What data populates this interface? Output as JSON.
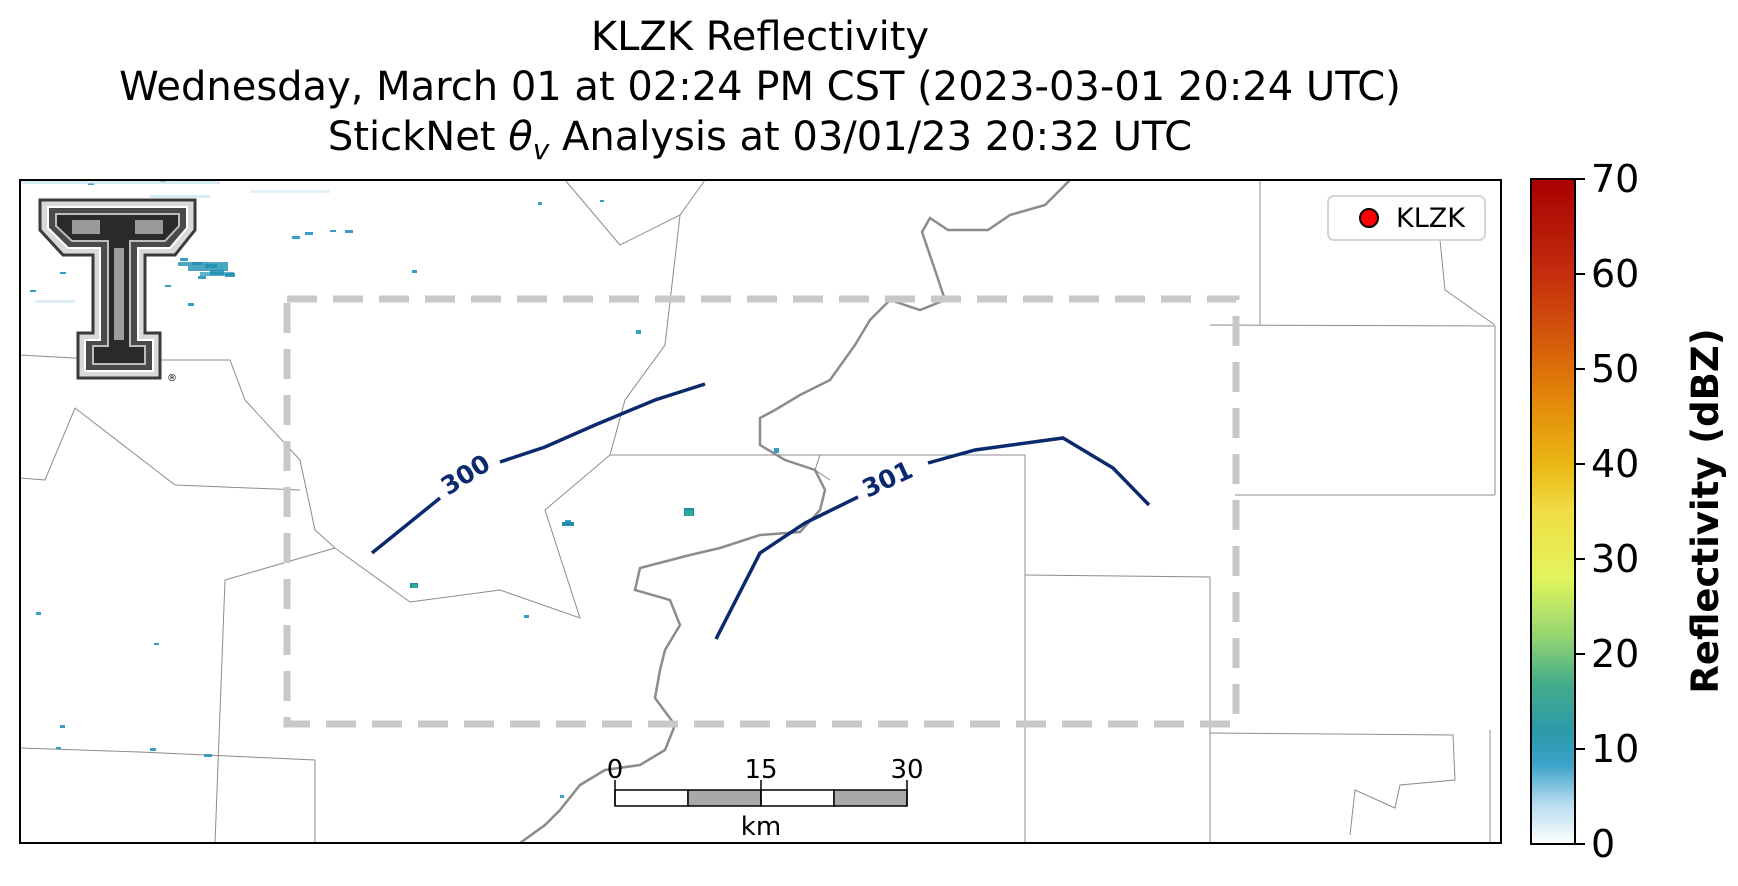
{
  "title": {
    "line1": "KLZK Reflectivity",
    "line2": "Wednesday, March 01 at 02:24 PM CST (2023-03-01 20:24 UTC)",
    "line3_prefix": "StickNet ",
    "line3_symbol": "θ",
    "line3_subscript": "v",
    "line3_suffix": " Analysis at 03/01/23 20:32 UTC"
  },
  "legend": {
    "label": "KLZK",
    "marker_color": "#ff0000"
  },
  "contours": [
    {
      "label": "300",
      "color": "#0b2a6e"
    },
    {
      "label": "301",
      "color": "#0b2a6e"
    }
  ],
  "scale_bar": {
    "ticks": [
      "0",
      "15",
      "30"
    ],
    "unit": "km"
  },
  "colorbar": {
    "label": "Reflectivity (dBZ)",
    "ticks": [
      "0",
      "10",
      "20",
      "30",
      "40",
      "50",
      "60",
      "70"
    ],
    "range": [
      0,
      70
    ],
    "colors": [
      "#ffffff",
      "#a8d8ea",
      "#2a9bbd",
      "#2aa79b",
      "#7cc97c",
      "#e0f45a",
      "#f5d800",
      "#e69a00",
      "#d85a00",
      "#b20000"
    ]
  },
  "logo": {
    "name": "Texas Tech Double T",
    "registered": "®"
  }
}
